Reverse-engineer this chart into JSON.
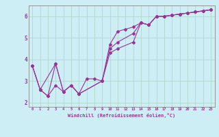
{
  "xlabel": "Windchill (Refroidissement éolien,°C)",
  "background_color": "#cdeef5",
  "grid_color": "#b0d8cc",
  "line_color": "#993399",
  "xlim": [
    -0.5,
    23.5
  ],
  "ylim": [
    1.8,
    6.5
  ],
  "yticks": [
    2,
    3,
    4,
    5,
    6
  ],
  "xticks": [
    0,
    1,
    2,
    3,
    4,
    5,
    6,
    7,
    8,
    9,
    10,
    11,
    12,
    13,
    14,
    15,
    16,
    17,
    18,
    19,
    20,
    21,
    22,
    23
  ],
  "line1_x": [
    0,
    1,
    2,
    3,
    4,
    5,
    6,
    7,
    8,
    9,
    10,
    11,
    12,
    13,
    14,
    15,
    16,
    17,
    18,
    19,
    20,
    21,
    22,
    23
  ],
  "line1_y": [
    3.7,
    2.6,
    2.3,
    3.8,
    2.5,
    2.8,
    2.4,
    3.1,
    3.1,
    3.0,
    4.7,
    5.3,
    5.4,
    5.5,
    5.7,
    5.6,
    6.0,
    6.0,
    6.05,
    6.1,
    6.15,
    6.2,
    6.25,
    6.3
  ],
  "line2_x": [
    0,
    1,
    3,
    4,
    5,
    6,
    9,
    10,
    11,
    13,
    14,
    15,
    16,
    17,
    18,
    19,
    20,
    21,
    22,
    23
  ],
  "line2_y": [
    3.7,
    2.6,
    3.8,
    2.5,
    2.8,
    2.4,
    3.0,
    4.5,
    4.8,
    5.2,
    5.7,
    5.6,
    6.0,
    6.0,
    6.05,
    6.1,
    6.15,
    6.2,
    6.25,
    6.3
  ],
  "line3_x": [
    0,
    1,
    2,
    3,
    4,
    5,
    6,
    9,
    10,
    11,
    13,
    14,
    15,
    16,
    17,
    18,
    19,
    20,
    21,
    22,
    23
  ],
  "line3_y": [
    3.7,
    2.6,
    2.3,
    2.8,
    2.5,
    2.8,
    2.4,
    3.0,
    4.3,
    4.5,
    4.8,
    5.7,
    5.6,
    6.0,
    6.0,
    6.05,
    6.1,
    6.15,
    6.2,
    6.25,
    6.3
  ]
}
